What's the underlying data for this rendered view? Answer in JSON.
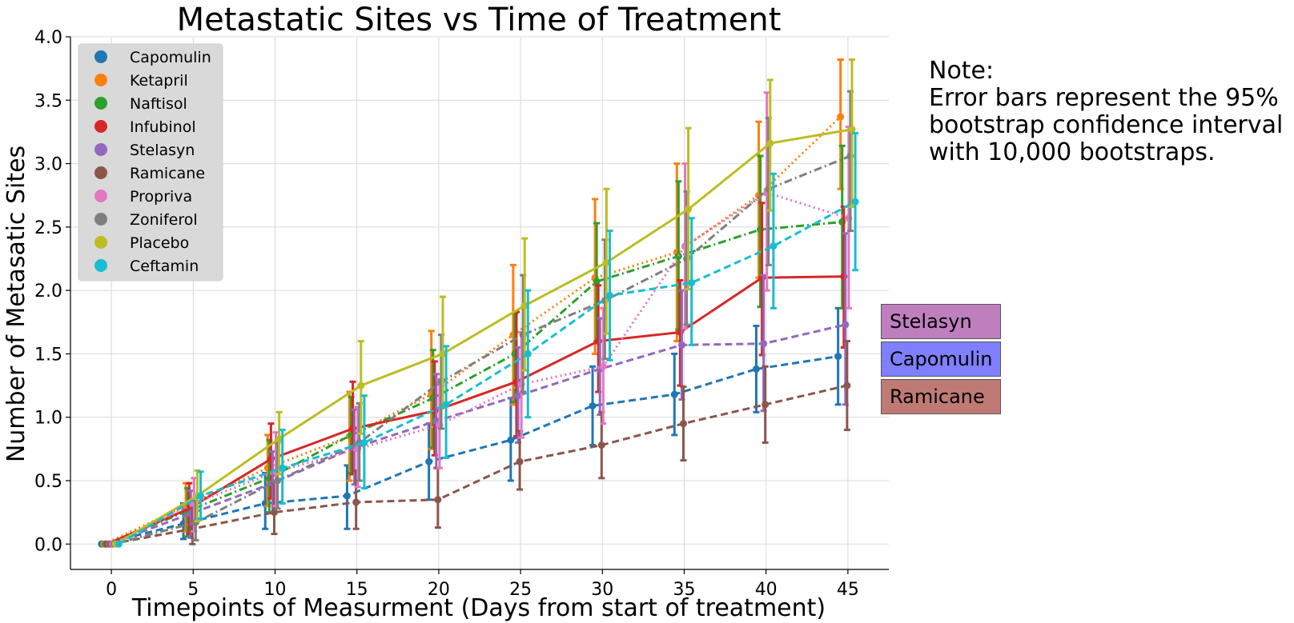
{
  "chart_data": {
    "type": "line",
    "title": "Metastatic Sites vs Time of Treatment",
    "xlabel": "Timepoints of Measurment (Days from start of treatment)",
    "ylabel": "Number of Metasatic Sites",
    "xlim": [
      -2.5,
      47.5
    ],
    "ylim": [
      -0.2,
      4.0
    ],
    "xticks": [
      0,
      5,
      10,
      15,
      20,
      25,
      30,
      35,
      40,
      45
    ],
    "yticks": [
      0.0,
      0.5,
      1.0,
      1.5,
      2.0,
      2.5,
      3.0,
      3.5,
      4.0
    ],
    "grid": true,
    "legend_position": "top-left",
    "x": [
      0,
      5,
      10,
      15,
      20,
      25,
      30,
      35,
      40,
      45
    ],
    "series": [
      {
        "name": "Capomulin",
        "color": "#1f77b4",
        "dash": "dashed",
        "offset": -0.6,
        "values": [
          0.0,
          0.16,
          0.32,
          0.38,
          0.65,
          0.82,
          1.09,
          1.18,
          1.38,
          1.48
        ],
        "lower": [
          0.0,
          0.04,
          0.12,
          0.12,
          0.35,
          0.5,
          0.78,
          0.86,
          1.04,
          1.1
        ],
        "upper": [
          0.0,
          0.32,
          0.56,
          0.62,
          0.95,
          1.15,
          1.4,
          1.5,
          1.72,
          1.86
        ]
      },
      {
        "name": "Ketapril",
        "color": "#ff7f0e",
        "dash": "dotted",
        "offset": -0.45,
        "values": [
          0.0,
          0.3,
          0.6,
          0.85,
          1.18,
          1.65,
          2.1,
          2.3,
          2.75,
          3.37
        ],
        "lower": [
          0.0,
          0.1,
          0.3,
          0.5,
          0.75,
          1.1,
          1.5,
          1.6,
          2.1,
          2.8
        ],
        "upper": [
          0.0,
          0.48,
          0.86,
          1.2,
          1.68,
          2.2,
          2.72,
          3.0,
          3.33,
          3.82
        ]
      },
      {
        "name": "Naftisol",
        "color": "#2ca02c",
        "dash": "dashdot",
        "offset": -0.35,
        "values": [
          0.0,
          0.26,
          0.52,
          0.86,
          1.15,
          1.5,
          2.07,
          2.27,
          2.48,
          2.54
        ],
        "lower": [
          0.0,
          0.06,
          0.25,
          0.56,
          0.76,
          1.12,
          1.6,
          1.69,
          1.87,
          1.86
        ],
        "upper": [
          0.0,
          0.44,
          0.82,
          1.16,
          1.53,
          1.82,
          2.53,
          2.86,
          3.06,
          3.14
        ]
      },
      {
        "name": "Infubinol",
        "color": "#d62728",
        "dash": "solid",
        "offset": -0.25,
        "values": [
          0.0,
          0.28,
          0.67,
          0.91,
          1.05,
          1.28,
          1.6,
          1.67,
          2.1,
          2.11
        ],
        "lower": [
          0.0,
          0.08,
          0.36,
          0.55,
          0.7,
          0.85,
          1.2,
          1.25,
          1.49,
          1.55
        ],
        "upper": [
          0.0,
          0.48,
          0.95,
          1.28,
          1.44,
          1.83,
          2.04,
          2.08,
          2.69,
          2.66
        ]
      },
      {
        "name": "Stelasyn",
        "color": "#9467bd",
        "dash": "dashed",
        "offset": -0.15,
        "values": [
          0.0,
          0.24,
          0.48,
          0.76,
          0.97,
          1.17,
          1.38,
          1.57,
          1.58,
          1.73
        ],
        "lower": [
          0.0,
          0.05,
          0.25,
          0.47,
          0.6,
          0.8,
          1.02,
          1.14,
          1.05,
          1.1
        ],
        "upper": [
          0.0,
          0.42,
          0.73,
          1.06,
          1.34,
          1.55,
          1.78,
          2.0,
          2.12,
          2.45
        ]
      },
      {
        "name": "Ramicane",
        "color": "#8c564b",
        "dash": "dashed",
        "offset": -0.05,
        "values": [
          0.0,
          0.12,
          0.25,
          0.33,
          0.35,
          0.65,
          0.78,
          0.95,
          1.1,
          1.25
        ],
        "lower": [
          0.0,
          0.0,
          0.08,
          0.12,
          0.13,
          0.43,
          0.52,
          0.66,
          0.8,
          0.9
        ],
        "upper": [
          0.0,
          0.28,
          0.48,
          0.58,
          0.6,
          0.89,
          1.04,
          1.24,
          1.4,
          1.6
        ]
      },
      {
        "name": "Propriva",
        "color": "#e377c2",
        "dash": "dotted",
        "offset": 0.05,
        "values": [
          0.0,
          0.32,
          0.57,
          0.75,
          0.94,
          1.26,
          1.4,
          2.35,
          2.77,
          2.57
        ],
        "lower": [
          0.0,
          0.1,
          0.3,
          0.45,
          0.6,
          0.84,
          0.95,
          1.7,
          2.0,
          1.86
        ],
        "upper": [
          0.0,
          0.52,
          0.88,
          1.08,
          1.3,
          1.67,
          1.86,
          3.0,
          3.56,
          3.29
        ]
      },
      {
        "name": "Zoniferol",
        "color": "#7f7f7f",
        "dash": "dashdot",
        "offset": 0.15,
        "values": [
          0.0,
          0.17,
          0.5,
          0.8,
          1.28,
          1.65,
          1.92,
          2.25,
          2.8,
          3.06
        ],
        "lower": [
          0.0,
          0.03,
          0.28,
          0.5,
          0.91,
          1.2,
          1.46,
          1.73,
          2.2,
          2.47
        ],
        "upper": [
          0.0,
          0.34,
          0.8,
          1.11,
          1.65,
          2.12,
          2.4,
          2.78,
          3.36,
          3.57
        ]
      },
      {
        "name": "Placebo",
        "color": "#bcbd22",
        "dash": "solid",
        "offset": 0.25,
        "values": [
          0.0,
          0.38,
          0.83,
          1.25,
          1.5,
          1.88,
          2.22,
          2.64,
          3.16,
          3.27
        ],
        "lower": [
          0.0,
          0.18,
          0.55,
          0.87,
          1.08,
          1.37,
          1.66,
          2.01,
          2.63,
          2.66
        ],
        "upper": [
          0.0,
          0.58,
          1.04,
          1.6,
          1.95,
          2.41,
          2.8,
          3.28,
          3.66,
          3.82
        ]
      },
      {
        "name": "Ceftamin",
        "color": "#17becf",
        "dash": "dashed",
        "offset": 0.45,
        "values": [
          0.0,
          0.38,
          0.6,
          0.8,
          1.1,
          1.5,
          1.96,
          2.06,
          2.35,
          2.7
        ],
        "lower": [
          0.0,
          0.2,
          0.32,
          0.44,
          0.68,
          1.0,
          1.45,
          1.57,
          1.86,
          2.16
        ],
        "upper": [
          0.0,
          0.57,
          0.9,
          1.17,
          1.56,
          2.0,
          2.47,
          2.57,
          2.92,
          3.24
        ]
      }
    ]
  },
  "note": {
    "lines": [
      "Note:",
      "Error bars represent the 95%",
      "bootstrap confidence interval",
      "with 10,000 bootstraps."
    ]
  },
  "labels": [
    {
      "text": "Stelasyn",
      "color": "#bf7fbf"
    },
    {
      "text": "Capomulin",
      "color": "#7f7fff"
    },
    {
      "text": "Ramicane",
      "color": "#c07a76"
    }
  ]
}
